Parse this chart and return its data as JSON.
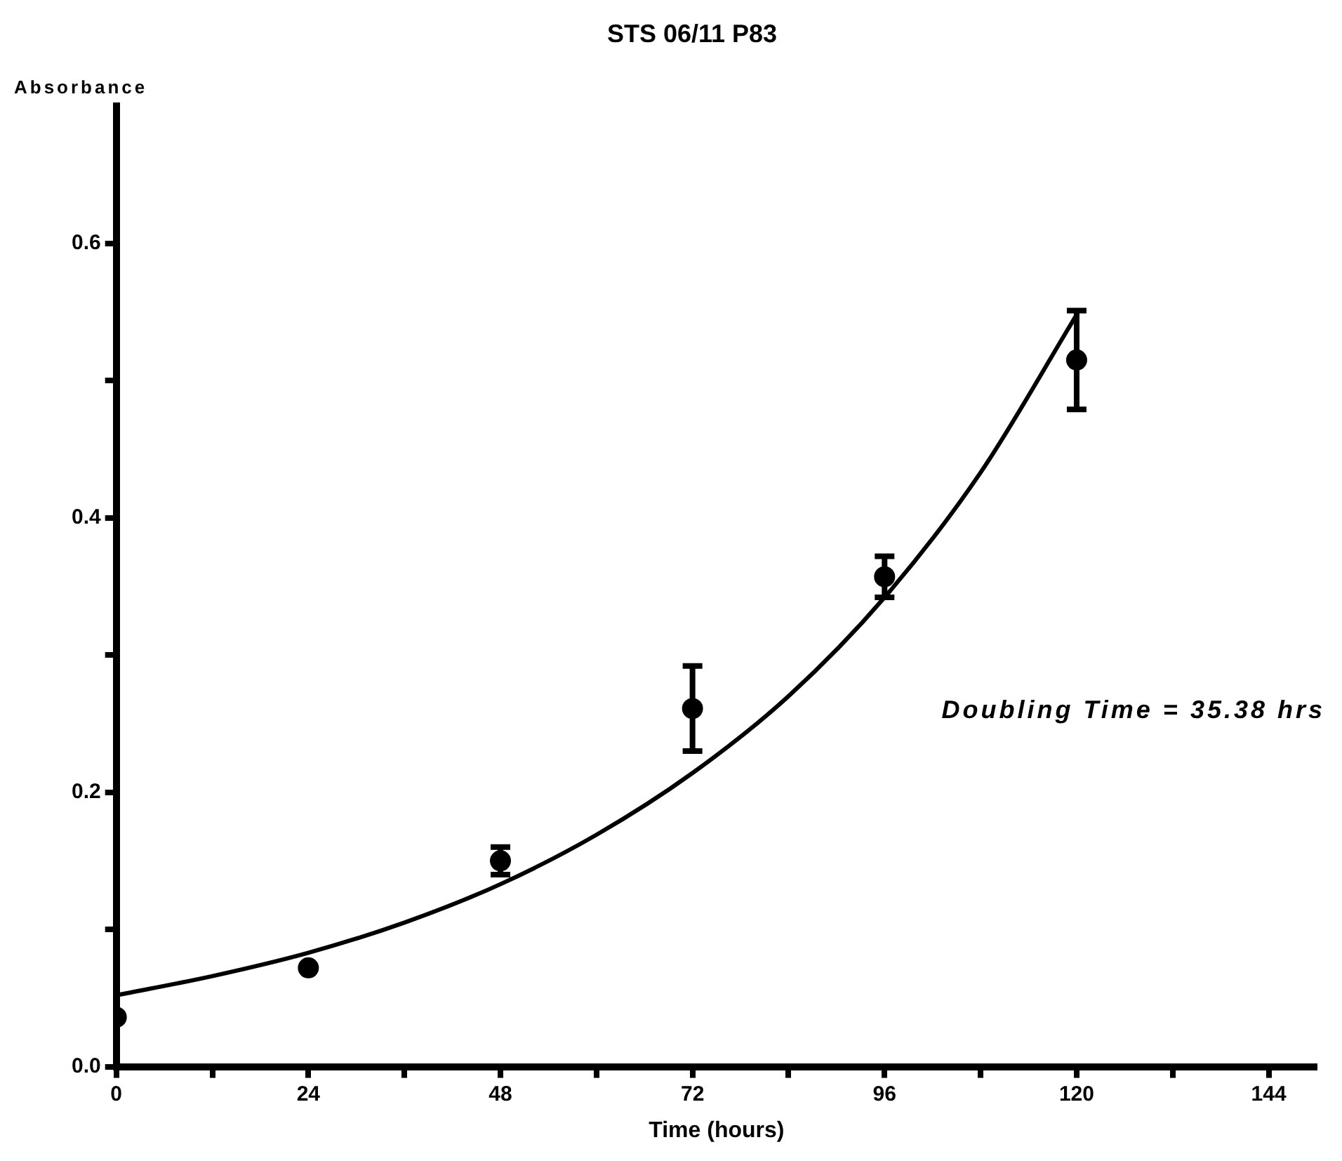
{
  "chart_data": {
    "type": "scatter",
    "title": "STS 06/11 P83",
    "xlabel": "Time (hours)",
    "ylabel": "Absorbance",
    "annotations": [
      "Doubling Time = 35.38 hrs"
    ],
    "x": [
      0,
      24,
      48,
      72,
      96,
      120
    ],
    "series": [
      {
        "marker": "circle",
        "color": "#000000",
        "values": [
          0.036,
          0.072,
          0.15,
          0.261,
          0.357,
          0.515
        ],
        "errors": [
          null,
          null,
          0.01,
          0.031,
          0.015,
          0.036
        ]
      },
      {
        "type": "line",
        "marker": "none",
        "color": "#000000",
        "x": [
          0,
          12,
          24,
          36,
          48,
          60,
          72,
          84,
          96,
          108,
          120
        ],
        "values": [
          0.052,
          0.066,
          0.083,
          0.105,
          0.133,
          0.169,
          0.214,
          0.27,
          0.342,
          0.433,
          0.548
        ]
      }
    ],
    "xlim": [
      0,
      150
    ],
    "xticks": [
      0,
      {
        "value": 12,
        "label": null
      },
      24,
      {
        "value": 36,
        "label": null
      },
      48,
      {
        "value": 60,
        "label": null
      },
      72,
      {
        "value": 84,
        "label": null
      },
      96,
      {
        "value": 108,
        "label": null
      },
      120,
      {
        "value": 132,
        "label": null
      },
      144
    ],
    "ylim": [
      0,
      0.7
    ],
    "yticks": [
      {
        "value": 0,
        "label": "0.0"
      },
      {
        "value": 0.1,
        "label": null
      },
      0.2,
      {
        "value": 0.3,
        "label": null
      },
      0.4,
      {
        "value": 0.5,
        "label": null
      },
      0.6
    ]
  }
}
